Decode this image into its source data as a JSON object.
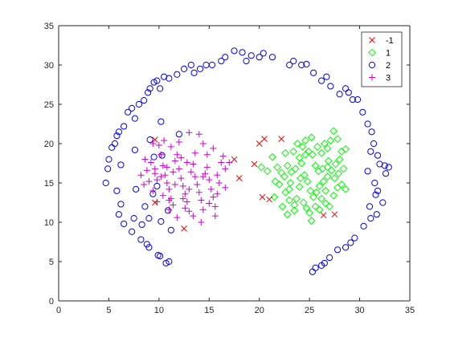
{
  "chart_data": {
    "type": "scatter",
    "title": "",
    "xlabel": "",
    "ylabel": "",
    "xlim": [
      0,
      35
    ],
    "ylim": [
      0,
      35
    ],
    "x_ticks": [
      "0",
      "5",
      "10",
      "15",
      "20",
      "25",
      "30",
      "35"
    ],
    "y_ticks": [
      "0",
      "5",
      "10",
      "15",
      "20",
      "25",
      "30",
      "35"
    ],
    "grid": false,
    "legend_position": "top-right",
    "series": [
      {
        "name": "-1",
        "marker": "x",
        "color": "#ff0000",
        "points": [
          [
            9.6,
            20.5
          ],
          [
            9.6,
            12.5
          ],
          [
            12.5,
            9.2
          ],
          [
            17.5,
            18.0
          ],
          [
            18.0,
            15.6
          ],
          [
            19.5,
            17.4
          ],
          [
            20.0,
            20.0
          ],
          [
            20.3,
            13.2
          ],
          [
            20.5,
            20.6
          ],
          [
            21.0,
            12.9
          ],
          [
            22.2,
            20.6
          ],
          [
            26.4,
            10.9
          ],
          [
            27.5,
            11.0
          ]
        ]
      },
      {
        "name": "1",
        "marker": "diamond",
        "color": "#00ff00",
        "points": [
          [
            20.2,
            17.0
          ],
          [
            20.8,
            16.5
          ],
          [
            21.3,
            18.3
          ],
          [
            21.8,
            17.0
          ],
          [
            22.2,
            16.3
          ],
          [
            22.5,
            15.8
          ],
          [
            22.8,
            17.2
          ],
          [
            22.0,
            14.8
          ],
          [
            22.6,
            13.8
          ],
          [
            23.0,
            12.8
          ],
          [
            23.5,
            12.2
          ],
          [
            21.5,
            13.2
          ],
          [
            22.3,
            12.0
          ],
          [
            23.1,
            15.0
          ],
          [
            23.6,
            16.8
          ],
          [
            24.0,
            18.2
          ],
          [
            24.3,
            19.6
          ],
          [
            24.6,
            20.4
          ],
          [
            24.9,
            19.0
          ],
          [
            25.2,
            20.8
          ],
          [
            23.8,
            20.0
          ],
          [
            23.4,
            19.0
          ],
          [
            24.2,
            17.5
          ],
          [
            24.5,
            16.0
          ],
          [
            24.8,
            15.2
          ],
          [
            25.1,
            14.0
          ],
          [
            25.4,
            13.2
          ],
          [
            24.0,
            14.5
          ],
          [
            23.7,
            13.0
          ],
          [
            24.4,
            12.5
          ],
          [
            24.7,
            11.8
          ],
          [
            25.0,
            11.2
          ],
          [
            25.2,
            10.2
          ],
          [
            23.5,
            11.5
          ],
          [
            22.8,
            11.0
          ],
          [
            25.6,
            17.2
          ],
          [
            25.9,
            16.5
          ],
          [
            26.2,
            18.8
          ],
          [
            26.5,
            20.0
          ],
          [
            26.8,
            19.4
          ],
          [
            27.1,
            20.4
          ],
          [
            27.4,
            21.6
          ],
          [
            27.8,
            20.6
          ],
          [
            28.2,
            19.0
          ],
          [
            28.6,
            19.3
          ],
          [
            28.0,
            18.0
          ],
          [
            27.6,
            17.4
          ],
          [
            27.2,
            16.6
          ],
          [
            26.8,
            15.8
          ],
          [
            26.4,
            15.2
          ],
          [
            26.0,
            14.6
          ],
          [
            25.7,
            13.8
          ],
          [
            26.2,
            13.0
          ],
          [
            26.6,
            12.4
          ],
          [
            27.0,
            12.0
          ],
          [
            27.4,
            13.4
          ],
          [
            27.8,
            14.4
          ],
          [
            28.2,
            14.8
          ],
          [
            28.6,
            14.2
          ],
          [
            26.0,
            11.6
          ],
          [
            25.6,
            12.0
          ],
          [
            26.8,
            17.0
          ],
          [
            27.5,
            15.6
          ],
          [
            26.3,
            16.8
          ],
          [
            25.3,
            18.6
          ],
          [
            24.1,
            15.6
          ],
          [
            23.2,
            16.4
          ],
          [
            22.6,
            18.8
          ],
          [
            21.6,
            15.2
          ],
          [
            27.9,
            16.2
          ],
          [
            28.4,
            16.8
          ],
          [
            26.6,
            14.0
          ],
          [
            25.8,
            19.6
          ],
          [
            24.6,
            18.6
          ],
          [
            23.0,
            14.2
          ],
          [
            26.9,
            17.8
          ]
        ]
      },
      {
        "name": "2",
        "marker": "circle",
        "color": "#0000ff",
        "points": [
          [
            4.7,
            15.0
          ],
          [
            4.9,
            16.8
          ],
          [
            5.0,
            18.0
          ],
          [
            5.3,
            19.5
          ],
          [
            5.6,
            20.0
          ],
          [
            5.8,
            21.0
          ],
          [
            6.0,
            21.5
          ],
          [
            6.5,
            22.2
          ],
          [
            6.9,
            24.0
          ],
          [
            7.3,
            24.5
          ],
          [
            7.6,
            23.2
          ],
          [
            8.0,
            25.0
          ],
          [
            8.5,
            25.5
          ],
          [
            8.9,
            26.5
          ],
          [
            9.1,
            27.0
          ],
          [
            9.5,
            27.8
          ],
          [
            9.8,
            28.0
          ],
          [
            10.1,
            27.0
          ],
          [
            10.5,
            28.5
          ],
          [
            11.0,
            28.3
          ],
          [
            11.8,
            28.8
          ],
          [
            12.5,
            29.5
          ],
          [
            13.2,
            30.0
          ],
          [
            13.5,
            29.0
          ],
          [
            14.1,
            29.5
          ],
          [
            14.7,
            30.0
          ],
          [
            15.3,
            30.0
          ],
          [
            16.2,
            30.5
          ],
          [
            16.6,
            31.0
          ],
          [
            17.5,
            31.8
          ],
          [
            18.3,
            31.6
          ],
          [
            18.7,
            30.5
          ],
          [
            19.2,
            31.2
          ],
          [
            20.0,
            31.0
          ],
          [
            20.4,
            31.5
          ],
          [
            21.3,
            31.0
          ],
          [
            23.0,
            30.0
          ],
          [
            23.4,
            30.5
          ],
          [
            24.2,
            30.0
          ],
          [
            24.7,
            30.1
          ],
          [
            25.4,
            29.0
          ],
          [
            26.2,
            28.0
          ],
          [
            26.7,
            28.5
          ],
          [
            27.1,
            27.3
          ],
          [
            28.0,
            26.3
          ],
          [
            28.6,
            27.0
          ],
          [
            28.9,
            26.5
          ],
          [
            29.3,
            25.6
          ],
          [
            29.8,
            25.6
          ],
          [
            30.3,
            24.0
          ],
          [
            30.8,
            22.5
          ],
          [
            31.2,
            21.5
          ],
          [
            31.4,
            20.0
          ],
          [
            31.1,
            19.0
          ],
          [
            31.8,
            18.5
          ],
          [
            32.0,
            17.4
          ],
          [
            32.5,
            17.2
          ],
          [
            32.6,
            16.2
          ],
          [
            32.9,
            17.0
          ],
          [
            30.8,
            16.5
          ],
          [
            31.5,
            15.0
          ],
          [
            31.6,
            13.5
          ],
          [
            31.8,
            14.0
          ],
          [
            32.3,
            12.5
          ],
          [
            31.7,
            11.0
          ],
          [
            31.1,
            10.5
          ],
          [
            30.4,
            9.5
          ],
          [
            29.5,
            8.0
          ],
          [
            29.1,
            7.4
          ],
          [
            28.6,
            6.8
          ],
          [
            27.8,
            6.5
          ],
          [
            27.0,
            5.5
          ],
          [
            26.5,
            4.8
          ],
          [
            26.2,
            4.5
          ],
          [
            25.6,
            4.2
          ],
          [
            25.3,
            3.7
          ],
          [
            12.0,
            21.2
          ],
          [
            10.2,
            22.8
          ],
          [
            9.5,
            18.3
          ],
          [
            10.3,
            18.5
          ],
          [
            7.6,
            19.2
          ],
          [
            6.2,
            17.3
          ],
          [
            5.8,
            14.0
          ],
          [
            6.2,
            12.3
          ],
          [
            6.0,
            11.0
          ],
          [
            6.5,
            9.8
          ],
          [
            7.5,
            10.5
          ],
          [
            7.3,
            8.8
          ],
          [
            8.3,
            9.7
          ],
          [
            9.4,
            13.6
          ],
          [
            9.0,
            10.5
          ],
          [
            8.8,
            7.2
          ],
          [
            8.2,
            7.8
          ],
          [
            9.0,
            6.8
          ],
          [
            9.9,
            5.8
          ],
          [
            10.1,
            5.7
          ],
          [
            10.7,
            4.8
          ],
          [
            11.0,
            5.0
          ],
          [
            10.2,
            10.1
          ],
          [
            10.9,
            11.5
          ],
          [
            8.6,
            12.0
          ],
          [
            7.7,
            14.2
          ],
          [
            9.1,
            20.5
          ],
          [
            9.8,
            14.6
          ],
          [
            11.2,
            9.0
          ],
          [
            31.0,
            12.0
          ]
        ]
      },
      {
        "name": "3",
        "marker": "plus",
        "color": "#cc00cc",
        "points": [
          [
            8.2,
            16.0
          ],
          [
            8.5,
            14.8
          ],
          [
            8.8,
            16.6
          ],
          [
            9.0,
            15.2
          ],
          [
            9.2,
            17.6
          ],
          [
            9.4,
            14.0
          ],
          [
            9.6,
            16.2
          ],
          [
            9.8,
            15.4
          ],
          [
            10.0,
            19.8
          ],
          [
            10.2,
            18.6
          ],
          [
            10.4,
            17.2
          ],
          [
            10.6,
            16.0
          ],
          [
            10.8,
            15.0
          ],
          [
            11.0,
            14.2
          ],
          [
            11.2,
            13.0
          ],
          [
            11.4,
            12.2
          ],
          [
            11.6,
            17.8
          ],
          [
            11.8,
            18.6
          ],
          [
            12.0,
            16.8
          ],
          [
            12.2,
            15.6
          ],
          [
            12.4,
            14.6
          ],
          [
            12.6,
            13.6
          ],
          [
            12.8,
            12.6
          ],
          [
            13.0,
            11.4
          ],
          [
            13.2,
            16.4
          ],
          [
            13.4,
            17.4
          ],
          [
            13.6,
            15.8
          ],
          [
            13.8,
            14.8
          ],
          [
            14.0,
            13.8
          ],
          [
            14.2,
            12.8
          ],
          [
            14.4,
            11.6
          ],
          [
            14.6,
            16.2
          ],
          [
            14.8,
            17.0
          ],
          [
            15.0,
            15.4
          ],
          [
            15.2,
            14.2
          ],
          [
            15.4,
            13.2
          ],
          [
            15.6,
            12.0
          ],
          [
            15.8,
            16.0
          ],
          [
            16.0,
            15.0
          ],
          [
            16.2,
            17.6
          ],
          [
            16.4,
            18.4
          ],
          [
            16.6,
            16.8
          ],
          [
            17.0,
            17.6
          ],
          [
            14.0,
            21.2
          ],
          [
            14.4,
            20.0
          ],
          [
            13.0,
            21.4
          ],
          [
            12.0,
            20.2
          ],
          [
            11.2,
            19.6
          ],
          [
            10.5,
            20.4
          ],
          [
            9.4,
            20.0
          ],
          [
            8.6,
            18.0
          ],
          [
            9.8,
            12.6
          ],
          [
            10.4,
            13.4
          ],
          [
            11.0,
            11.6
          ],
          [
            11.8,
            10.6
          ],
          [
            12.6,
            11.8
          ],
          [
            13.4,
            10.8
          ],
          [
            14.2,
            10.0
          ],
          [
            15.0,
            12.4
          ],
          [
            15.6,
            10.8
          ],
          [
            11.4,
            16.4
          ],
          [
            12.8,
            17.6
          ],
          [
            10.8,
            17.0
          ],
          [
            13.6,
            18.8
          ],
          [
            14.8,
            18.6
          ],
          [
            15.4,
            19.4
          ],
          [
            12.2,
            18.2
          ],
          [
            11.6,
            14.8
          ],
          [
            13.0,
            14.2
          ],
          [
            14.4,
            15.8
          ],
          [
            10.2,
            15.8
          ],
          [
            9.6,
            16.8
          ],
          [
            16.6,
            14.4
          ],
          [
            15.8,
            13.6
          ],
          [
            12.4,
            13.0
          ],
          [
            11.0,
            12.8
          ]
        ]
      }
    ]
  }
}
